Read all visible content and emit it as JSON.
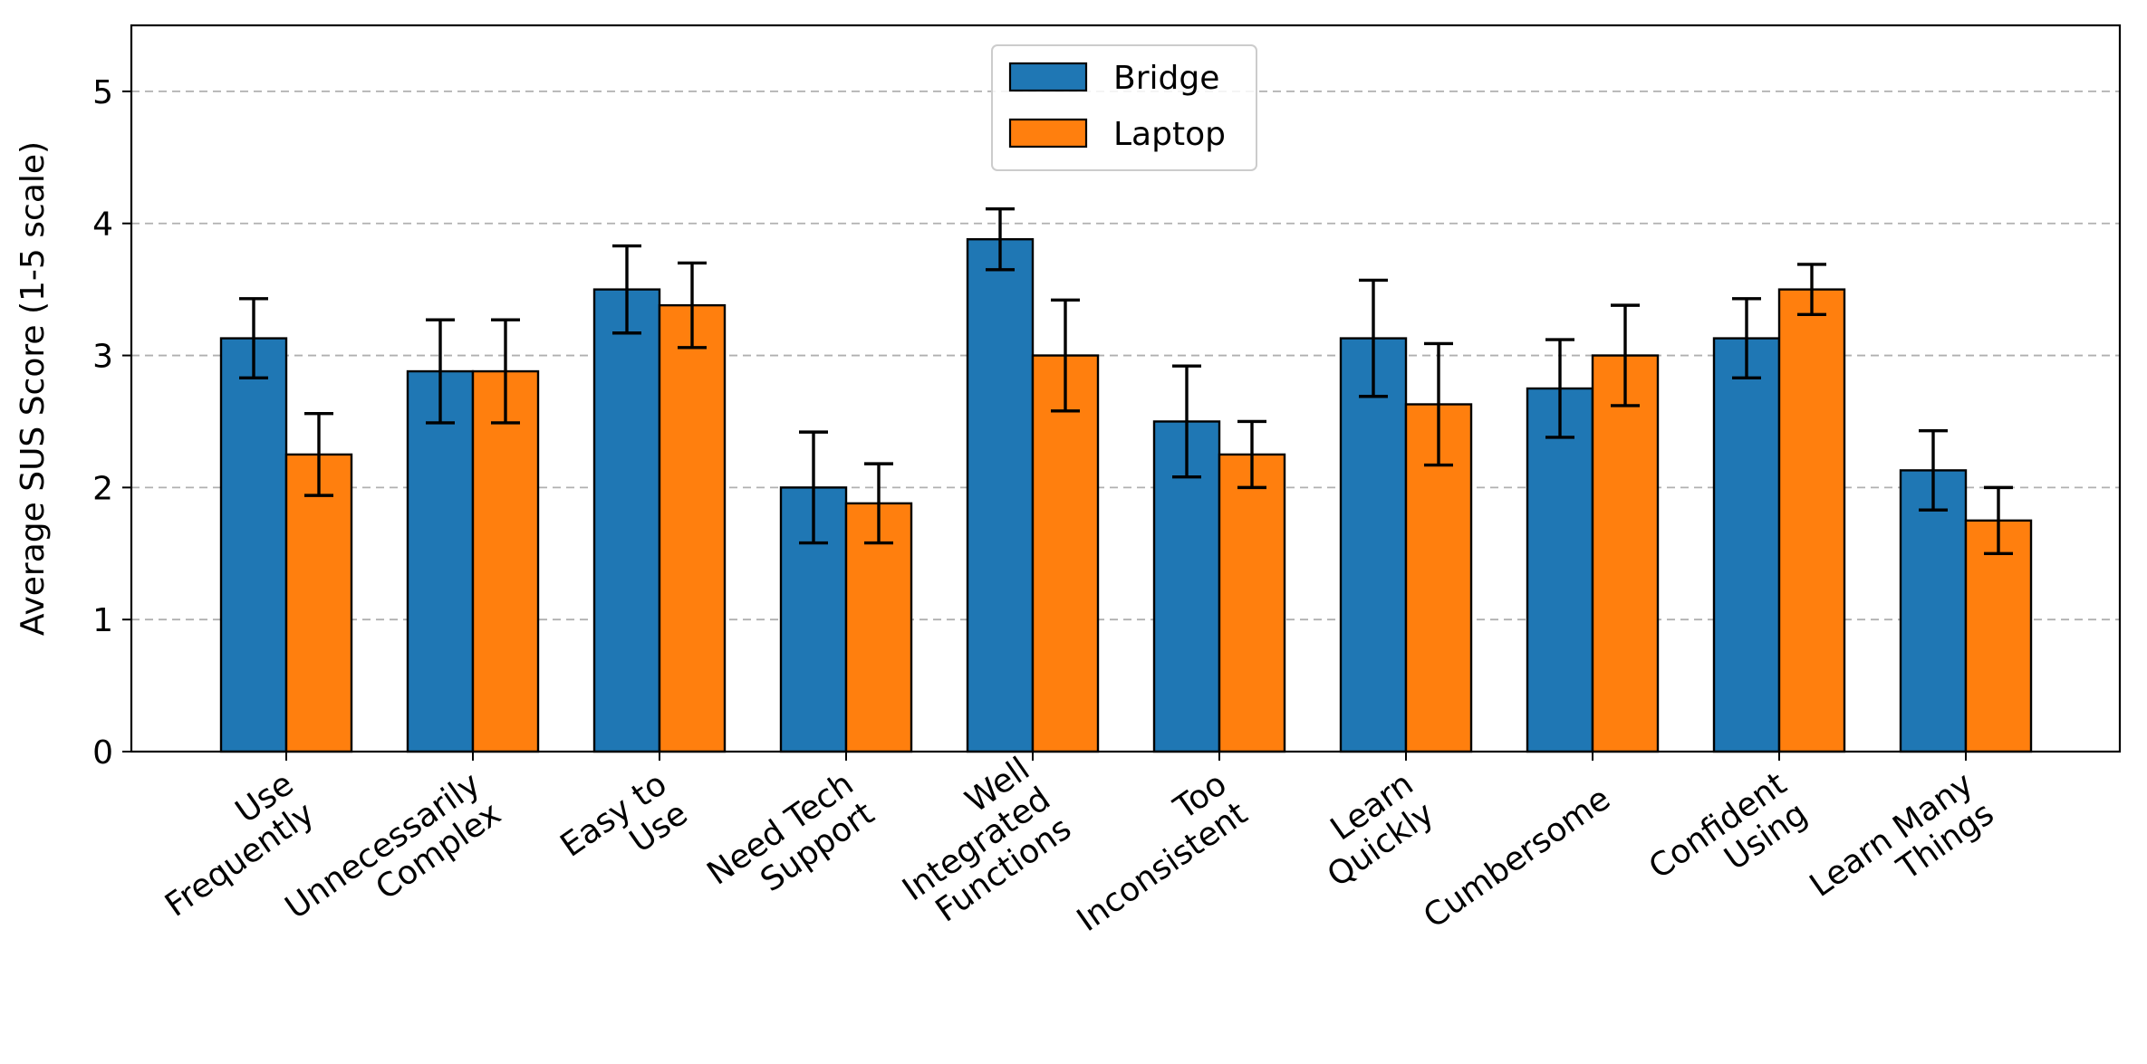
{
  "chart_data": {
    "type": "bar",
    "title": "",
    "xlabel": "",
    "ylabel": "Average SUS Score (1-5 scale)",
    "ylim": [
      0,
      5.5
    ],
    "yticks": [
      0,
      1,
      2,
      3,
      4,
      5
    ],
    "ytick_labels": [
      "0",
      "1",
      "2",
      "3",
      "4",
      "5"
    ],
    "grid": "y-dashed",
    "legend_position": "top-center",
    "categories": [
      [
        "Use",
        "Frequently"
      ],
      [
        "Unnecessarily",
        "Complex"
      ],
      [
        "Easy to",
        "Use"
      ],
      [
        "Need Tech",
        "Support"
      ],
      [
        "Well",
        "Integrated",
        "Functions"
      ],
      [
        "Too",
        "Inconsistent"
      ],
      [
        "Learn",
        "Quickly"
      ],
      [
        "Cumbersome"
      ],
      [
        "Confident",
        "Using"
      ],
      [
        "Learn Many",
        "Things"
      ]
    ],
    "series": [
      {
        "name": "Bridge",
        "color": "#1f77b4",
        "values": [
          3.13,
          2.88,
          3.5,
          2.0,
          3.88,
          2.5,
          3.13,
          2.75,
          3.13,
          2.13
        ],
        "errors": [
          0.3,
          0.39,
          0.33,
          0.42,
          0.23,
          0.42,
          0.44,
          0.37,
          0.3,
          0.3
        ]
      },
      {
        "name": "Laptop",
        "color": "#ff7f0e",
        "values": [
          2.25,
          2.88,
          3.38,
          1.88,
          3.0,
          2.25,
          2.63,
          3.0,
          3.5,
          1.75
        ],
        "errors": [
          0.31,
          0.39,
          0.32,
          0.3,
          0.42,
          0.25,
          0.46,
          0.38,
          0.19,
          0.25
        ]
      }
    ]
  }
}
